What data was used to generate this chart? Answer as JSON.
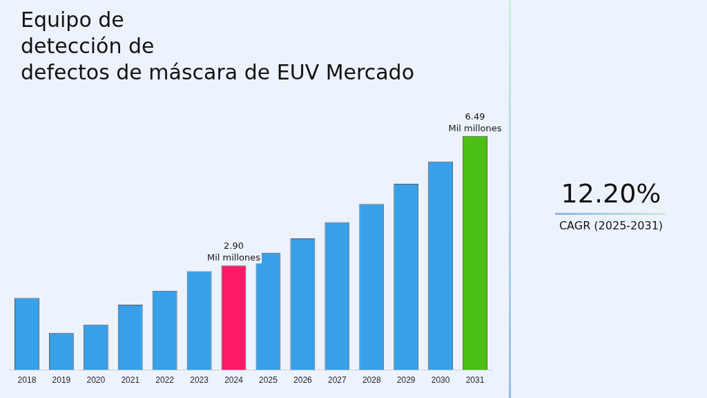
{
  "chart_data": {
    "type": "bar",
    "title": "Equipo de\ndetección de\ndefectos de máscara de EUV Mercado",
    "categories": [
      "2018",
      "2019",
      "2020",
      "2021",
      "2022",
      "2023",
      "2024",
      "2025",
      "2026",
      "2027",
      "2028",
      "2029",
      "2030",
      "2031"
    ],
    "values": [
      2.0,
      1.03,
      1.26,
      1.81,
      2.2,
      2.74,
      2.9,
      3.25,
      3.65,
      4.1,
      4.6,
      5.16,
      5.78,
      6.49
    ],
    "colors": [
      "#38a0e8",
      "#38a0e8",
      "#38a0e8",
      "#38a0e8",
      "#38a0e8",
      "#38a0e8",
      "#fe1a66",
      "#38a0e8",
      "#38a0e8",
      "#38a0e8",
      "#38a0e8",
      "#38a0e8",
      "#38a0e8",
      "#4cbf14"
    ],
    "value_labels": [
      null,
      null,
      null,
      null,
      null,
      null,
      "2.90\nMil millones",
      null,
      null,
      null,
      null,
      null,
      null,
      "6.49\nMil millones"
    ],
    "annotations": [
      "12.20%",
      "CAGR (2025-2031)"
    ],
    "grid": false,
    "legend": false
  }
}
